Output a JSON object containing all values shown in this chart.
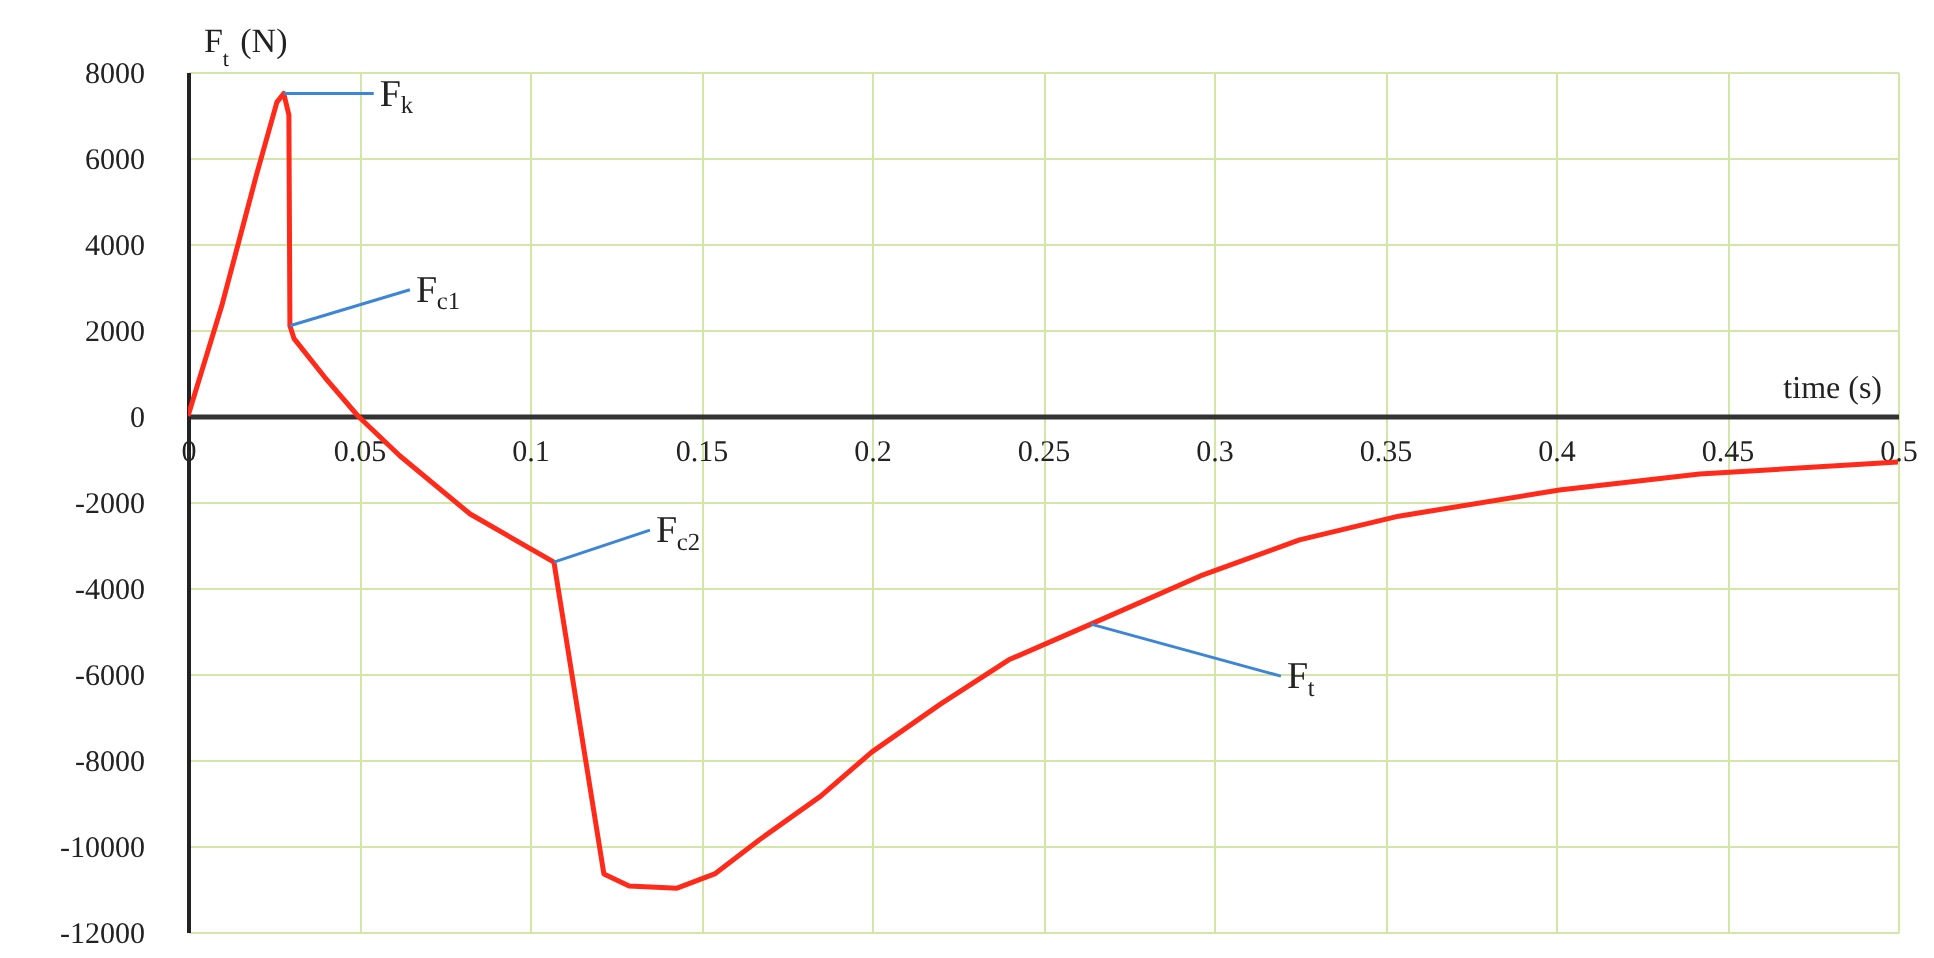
{
  "chart_data": {
    "type": "line",
    "xlabel": "time (s)",
    "ylabel": "F$_{t}$ (N)",
    "x": [
      0,
      0.01,
      0.02,
      0.026,
      0.028,
      0.0295,
      0.0298,
      0.031,
      0.04,
      0.0497,
      0.062,
      0.0825,
      0.107,
      0.1216,
      0.129,
      0.143,
      0.154,
      0.167,
      0.185,
      0.2,
      0.22,
      0.24,
      0.264,
      0.296,
      0.325,
      0.354,
      0.401,
      0.442,
      0.5
    ],
    "series": [
      {
        "color": "#ff2a1a",
        "values": [
          0,
          2600,
          5600,
          7300,
          7500,
          7000,
          2100,
          1800,
          900,
          0,
          -930,
          -2280,
          -3400,
          -10650,
          -10930,
          -10980,
          -10650,
          -9860,
          -8840,
          -7810,
          -6700,
          -5670,
          -4840,
          -3720,
          -2880,
          -2330,
          -1720,
          -1350,
          -1070
        ]
      }
    ],
    "xlim": [
      0,
      0.5
    ],
    "xticks": [
      0,
      0.05,
      0.1,
      0.15,
      0.2,
      0.25,
      0.3,
      0.35,
      0.4,
      0.45,
      0.5
    ],
    "ylim": [
      -12000,
      8000
    ],
    "yticks": [
      -12000,
      -10000,
      -8000,
      -6000,
      -4000,
      -2000,
      0,
      2000,
      4000,
      6000,
      8000
    ],
    "grid": true,
    "line_style": "solid",
    "marker": "none",
    "annotations": [
      {
        "text": "F$_{k}$",
        "x": 0.028,
        "y": 7500
      },
      {
        "text": "F$_{c1}$",
        "x": 0.0298,
        "y": 2100
      },
      {
        "text": "F$_{c2}$",
        "x": 0.107,
        "y": -3400
      },
      {
        "text": "F$_{t}$",
        "x": 0.264,
        "y": -4840
      }
    ]
  }
}
